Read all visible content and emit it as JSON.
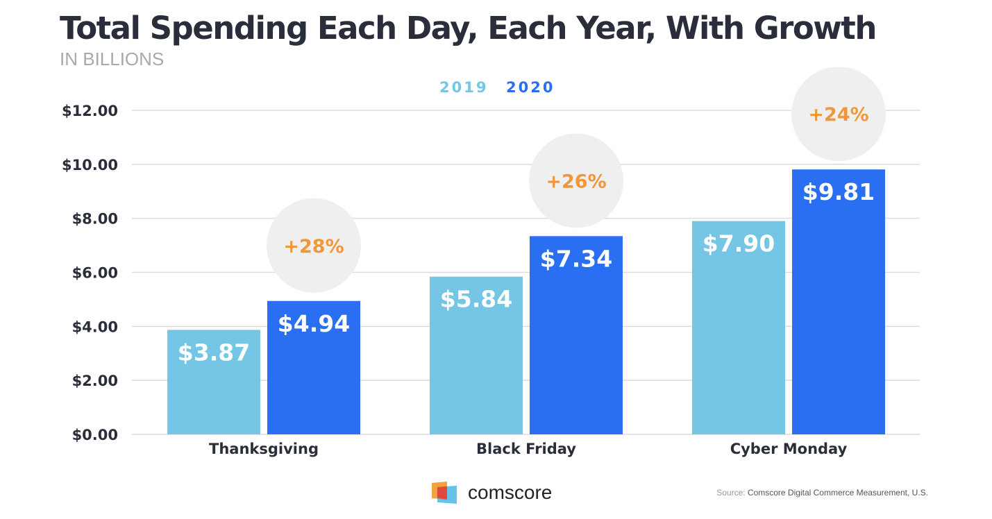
{
  "chart_data": {
    "type": "bar",
    "title": "Total Spending Each Day, Each Year, With Growth",
    "subtitle": "IN BILLIONS",
    "categories": [
      "Thanksgiving",
      "Black Friday",
      "Cyber Monday"
    ],
    "series": [
      {
        "name": "2019",
        "values": [
          3.87,
          5.84,
          7.9
        ],
        "labels": [
          "$3.87",
          "$5.84",
          "$7.90"
        ],
        "color": "#75c6e5"
      },
      {
        "name": "2020",
        "values": [
          4.94,
          7.34,
          9.81
        ],
        "labels": [
          "$4.94",
          "$7.34",
          "$9.81"
        ],
        "color": "#2a6ef2"
      }
    ],
    "growth_labels": [
      "+28%",
      "+26%",
      "+24%"
    ],
    "growth_color": "#f0973a",
    "ylim": [
      0,
      12
    ],
    "yticks": [
      0,
      2,
      4,
      6,
      8,
      10,
      12
    ],
    "ytick_labels": [
      "$0.00",
      "$2.00",
      "$4.00",
      "$6.00",
      "$8.00",
      "$10.00",
      "$12.00"
    ],
    "grid": true,
    "legend": "top-center"
  },
  "footer": {
    "logo_text": "comscore",
    "source_label": "Source:",
    "source_text": "Comscore Digital Commerce Measurement, U.S."
  }
}
